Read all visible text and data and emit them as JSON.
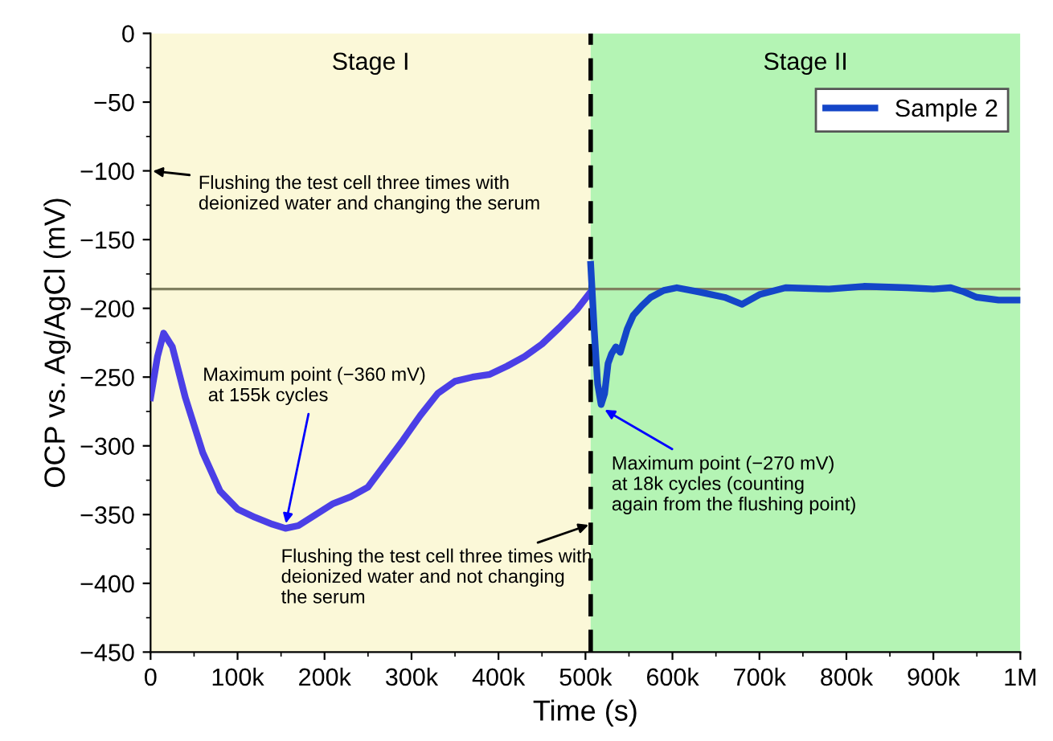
{
  "chart_data": {
    "type": "line",
    "xlabel": "Time (s)",
    "ylabel": "OCP vs. Ag/AgCl (mV)",
    "series": [
      {
        "color": "#4b3fe6",
        "x": [
          0,
          8000,
          15000,
          25000,
          40000,
          60000,
          80000,
          100000,
          120000,
          140000,
          155000,
          170000,
          190000,
          210000,
          230000,
          250000,
          270000,
          290000,
          310000,
          330000,
          350000,
          370000,
          390000,
          410000,
          430000,
          450000,
          470000,
          490000,
          506000
        ],
        "values": [
          -265,
          -235,
          -218,
          -228,
          -265,
          -305,
          -333,
          -346,
          -352,
          -357,
          -360,
          -358,
          -350,
          -342,
          -337,
          -330,
          -313,
          -296,
          -278,
          -262,
          -253,
          -250,
          -248,
          -242,
          -235,
          -226,
          -214,
          -201,
          -188
        ]
      },
      {
        "name": "Sample 2",
        "color": "#1446c8",
        "x": [
          506000,
          510000,
          514000,
          518000,
          522000,
          526000,
          530000,
          535000,
          540000,
          548000,
          555000,
          565000,
          575000,
          590000,
          605000,
          630000,
          660000,
          680000,
          700000,
          730000,
          780000,
          820000,
          870000,
          900000,
          920000,
          935000,
          950000,
          975000,
          1000000
        ],
        "values": [
          -168,
          -215,
          -255,
          -270,
          -262,
          -240,
          -233,
          -228,
          -232,
          -215,
          -205,
          -198,
          -192,
          -187,
          -185,
          -188,
          -192,
          -197,
          -190,
          -185,
          -186,
          -184,
          -185,
          -186,
          -185,
          -188,
          -192,
          -194,
          -194
        ]
      }
    ],
    "xlim": [
      0,
      1000000
    ],
    "ylim": [
      -450,
      0
    ],
    "xticks": [
      0,
      {
        "value": 100000,
        "label": "100k"
      },
      {
        "value": 200000,
        "label": "200k"
      },
      {
        "value": 300000,
        "label": "300k"
      },
      {
        "value": 400000,
        "label": "400k"
      },
      {
        "value": 500000,
        "label": "500k"
      },
      {
        "value": 600000,
        "label": "600k"
      },
      {
        "value": 700000,
        "label": "700k"
      },
      {
        "value": 800000,
        "label": "800k"
      },
      {
        "value": 900000,
        "label": "900k"
      },
      {
        "value": 1000000,
        "label": "1M"
      }
    ],
    "yticks": [
      {
        "value": -450,
        "label": "−450"
      },
      {
        "value": -400,
        "label": "−400"
      },
      {
        "value": -350,
        "label": "−350"
      },
      {
        "value": -300,
        "label": "−300"
      },
      {
        "value": -250,
        "label": "−250"
      },
      {
        "value": -200,
        "label": "−200"
      },
      {
        "value": -150,
        "label": "−150"
      },
      {
        "value": -100,
        "label": "−100"
      },
      {
        "value": -50,
        "label": "−50"
      },
      0
    ],
    "bands": [
      {
        "axis": "x",
        "from": 0,
        "to": 506000,
        "label": "Stage I",
        "color": "#fbf8d8"
      },
      {
        "axis": "x",
        "from": 506000,
        "to": 1000000,
        "label": "Stage II",
        "color": "#b4f4b4"
      }
    ],
    "ref_lines": [
      {
        "axis": "x",
        "value": 506000,
        "color": "#000000",
        "line_style": "dashed"
      },
      {
        "axis": "y",
        "value": -186,
        "color": "#808060",
        "line_style": "solid"
      }
    ],
    "annotations": [
      {
        "text": "Flushing the test cell three times with\ndeionized water and changing the serum",
        "x": 0,
        "y": -100
      },
      {
        "text": "Maximum point (−360 mV)\n at 155k cycles",
        "x": 155000,
        "y": -358
      },
      {
        "text": "Flushing the test cell three times with\ndeionized water and not changing\nthe serum",
        "x": 506000,
        "y": -357
      },
      {
        "text": "Maximum point (−270 mV)\nat 18k cycles (counting\nagain from the flushing point)",
        "x": 520000,
        "y": -273
      }
    ],
    "legend": "top right",
    "grid": false,
    "marker": "none",
    "line_style": "solid"
  }
}
